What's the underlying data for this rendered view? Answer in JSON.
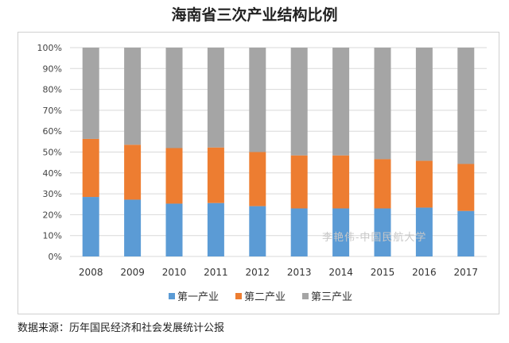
{
  "chart_data": {
    "type": "bar",
    "stacked": true,
    "title": "海南省三次产业结构比例",
    "categories": [
      "2008",
      "2009",
      "2010",
      "2011",
      "2012",
      "2013",
      "2014",
      "2015",
      "2016",
      "2017"
    ],
    "series": [
      {
        "name": "第一产业",
        "color": "#5b9bd5",
        "values": [
          28.5,
          27.2,
          25.3,
          25.6,
          24.1,
          23.0,
          23.0,
          23.0,
          23.4,
          21.8
        ]
      },
      {
        "name": "第二产业",
        "color": "#ed7d31",
        "values": [
          27.8,
          26.3,
          26.6,
          26.6,
          25.9,
          25.4,
          25.4,
          23.6,
          22.4,
          22.5
        ]
      },
      {
        "name": "第三产业",
        "color": "#a5a5a5",
        "values": [
          43.7,
          46.5,
          48.1,
          47.8,
          50.0,
          51.6,
          51.6,
          53.4,
          54.2,
          55.7
        ]
      }
    ],
    "yticks": [
      "0%",
      "10%",
      "20%",
      "30%",
      "40%",
      "50%",
      "60%",
      "70%",
      "80%",
      "90%",
      "100%"
    ],
    "ylim": [
      0,
      100
    ],
    "grid": true,
    "legend": "bottom"
  },
  "source": "数据来源：历年国民经济和社会发展统计公报",
  "watermark": "李艳伟-中国民航大学"
}
